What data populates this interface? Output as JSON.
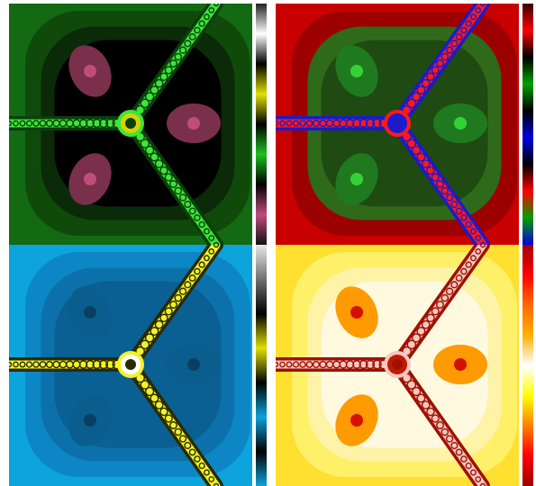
{
  "panels": [
    {
      "id": "green-fractal",
      "palette": {
        "background": "#0b0b0b",
        "bands": [
          "#000000",
          "#0a2a08",
          "#0f4a0b",
          "#136a12"
        ],
        "filament": "#3ee53a",
        "filament_dark": "#0a3f0a",
        "blob": "#7a2f4a",
        "blob_core": "#c04c7c",
        "center": "#d4d400"
      },
      "colorbar": [
        "#222222",
        "#ffffff",
        "#000000",
        "#e0e000",
        "#000000",
        "#20c020",
        "#000000",
        "#c04c7c",
        "#111111"
      ]
    },
    {
      "id": "red-fractal",
      "palette": {
        "background": "#7a0000",
        "bands": [
          "#1f4a12",
          "#2e6a1a",
          "#9d0000",
          "#c80000"
        ],
        "filament": "#ff1a1a",
        "filament_dark": "#1b1bc9",
        "blob": "#1f7a1f",
        "blob_core": "#34d234",
        "center": "#1b1bd0"
      },
      "colorbar": [
        "#3a0000",
        "#ff0000",
        "#000000",
        "#00a000",
        "#000000",
        "#0000e0",
        "#000000",
        "#ff0000",
        "#00a000",
        "#0000e0"
      ]
    },
    {
      "id": "blue-fractal",
      "palette": {
        "background": "#0a5f93",
        "bands": [
          "#0a5f93",
          "#0c71aa",
          "#0d86c6",
          "#0da3dc"
        ],
        "filament": "#f2f22a",
        "filament_dark": "#2a2a00",
        "blob": "#0a5e8e",
        "blob_core": "#0b3f62",
        "center": "#ffffff"
      },
      "colorbar": [
        "#e8e8e8",
        "#707070",
        "#000000",
        "#e0e000",
        "#000000",
        "#0da3dc",
        "#000000",
        "#0da3dc"
      ]
    },
    {
      "id": "yellow-fractal",
      "palette": {
        "background": "#fff2a0",
        "bands": [
          "#fff9e0",
          "#fff3a8",
          "#fff06a",
          "#ffe030"
        ],
        "filament": "#f5c9c0",
        "filament_dark": "#a01000",
        "blob": "#ff9a00",
        "blob_core": "#d41000",
        "center": "#c11a00"
      },
      "colorbar": [
        "#a00000",
        "#ff0000",
        "#ff6a00",
        "#ffb000",
        "#ffffff",
        "#ffff00",
        "#ff8000",
        "#ff0000",
        "#a00000"
      ]
    }
  ]
}
